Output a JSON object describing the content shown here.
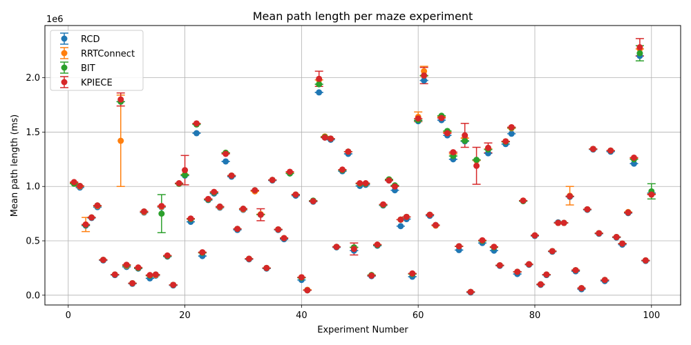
{
  "chart_data": {
    "type": "scatter",
    "title": "Mean path length per maze experiment",
    "xlabel": "Experiment Number",
    "ylabel": "Mean path length (ms)",
    "y_offset_label": "1e6",
    "xlim": [
      -4,
      105
    ],
    "ylim": [
      -90000,
      2480000
    ],
    "xticks": [
      0,
      20,
      40,
      60,
      80,
      100
    ],
    "xtick_labels": [
      "0",
      "20",
      "40",
      "60",
      "80",
      "100"
    ],
    "yticks": [
      0,
      500000,
      1000000,
      1500000,
      2000000
    ],
    "ytick_labels": [
      "0.0",
      "0.5",
      "1.0",
      "1.5",
      "2.0"
    ],
    "grid": true,
    "legend_position": "top-left",
    "colors": {
      "RCD": "#1f77b4",
      "RRTConnect": "#ff7f0e",
      "BIT": "#2ca02c",
      "KPIECE": "#d62728"
    },
    "series": [
      {
        "name": "RCD",
        "x": [
          1,
          2,
          3,
          4,
          5,
          6,
          8,
          9,
          10,
          11,
          12,
          13,
          14,
          15,
          16,
          17,
          18,
          19,
          20,
          21,
          22,
          23,
          24,
          25,
          26,
          27,
          28,
          29,
          30,
          31,
          32,
          33,
          34,
          35,
          36,
          37,
          38,
          39,
          40,
          41,
          42,
          43,
          44,
          45,
          46,
          47,
          48,
          49,
          50,
          51,
          52,
          53,
          54,
          55,
          56,
          57,
          58,
          59,
          60,
          61,
          62,
          63,
          64,
          65,
          66,
          67,
          68,
          69,
          70,
          71,
          72,
          73,
          74,
          75,
          76,
          77,
          78,
          79,
          80,
          81,
          82,
          83,
          84,
          85,
          86,
          87,
          88,
          89,
          90,
          91,
          92,
          93,
          94,
          95,
          96,
          97,
          98,
          99,
          100
        ],
        "y": [
          1030000,
          990000,
          640000,
          710000,
          810000,
          320000,
          185000,
          1780000,
          260000,
          105000,
          245000,
          760000,
          155000,
          180000,
          810000,
          355000,
          90000,
          1025000,
          1100000,
          675000,
          1490000,
          360000,
          875000,
          935000,
          805000,
          1230000,
          1090000,
          600000,
          785000,
          330000,
          960000,
          740000,
          245000,
          1055000,
          600000,
          515000,
          1120000,
          915000,
          140000,
          45000,
          860000,
          1865000,
          1450000,
          1430000,
          440000,
          1140000,
          1300000,
          410000,
          1005000,
          1015000,
          175000,
          455000,
          825000,
          1055000,
          965000,
          635000,
          700000,
          170000,
          1600000,
          1975000,
          730000,
          640000,
          1610000,
          1470000,
          1250000,
          415000,
          1415000,
          25000,
          1240000,
          480000,
          1305000,
          410000,
          270000,
          1390000,
          1485000,
          195000,
          865000,
          280000,
          545000,
          95000,
          185000,
          400000,
          670000,
          665000,
          905000,
          220000,
          55000,
          785000,
          1340000,
          565000,
          130000,
          1320000,
          530000,
          465000,
          755000,
          1210000,
          2200000,
          315000,
          940000
        ],
        "err": [
          0,
          0,
          0,
          0,
          0,
          0,
          0,
          0,
          0,
          0,
          0,
          0,
          0,
          0,
          0,
          0,
          0,
          0,
          0,
          0,
          0,
          0,
          0,
          0,
          0,
          0,
          0,
          0,
          0,
          0,
          0,
          0,
          0,
          0,
          0,
          0,
          0,
          0,
          0,
          0,
          0,
          0,
          0,
          0,
          0,
          0,
          0,
          0,
          0,
          0,
          0,
          0,
          0,
          0,
          0,
          0,
          0,
          0,
          0,
          0,
          0,
          0,
          0,
          0,
          0,
          0,
          0,
          0,
          0,
          0,
          0,
          0,
          0,
          0,
          0,
          0,
          0,
          0,
          0,
          0,
          0,
          0,
          0,
          0,
          0,
          0,
          0,
          0,
          0,
          0,
          0,
          0,
          0,
          0,
          0,
          0,
          0,
          0,
          0
        ]
      },
      {
        "name": "RRTConnect",
        "x": [
          1,
          2,
          3,
          4,
          5,
          6,
          8,
          9,
          10,
          11,
          12,
          13,
          14,
          15,
          16,
          17,
          18,
          19,
          20,
          21,
          22,
          23,
          24,
          25,
          26,
          27,
          28,
          29,
          30,
          31,
          32,
          33,
          34,
          35,
          36,
          37,
          38,
          39,
          40,
          41,
          42,
          43,
          44,
          45,
          46,
          47,
          48,
          49,
          50,
          51,
          52,
          53,
          54,
          55,
          56,
          57,
          58,
          59,
          60,
          61,
          62,
          63,
          64,
          65,
          66,
          67,
          68,
          69,
          70,
          71,
          72,
          73,
          74,
          75,
          76,
          77,
          78,
          79,
          80,
          81,
          82,
          83,
          84,
          85,
          86,
          87,
          88,
          89,
          90,
          91,
          92,
          93,
          94,
          95,
          96,
          97,
          98,
          99,
          100
        ],
        "y": [
          1030000,
          1000000,
          650000,
          715000,
          820000,
          325000,
          190000,
          1420000,
          270000,
          110000,
          250000,
          765000,
          180000,
          185000,
          815000,
          360000,
          95000,
          1025000,
          1110000,
          700000,
          1575000,
          390000,
          880000,
          945000,
          810000,
          1310000,
          1100000,
          610000,
          790000,
          335000,
          955000,
          745000,
          250000,
          1060000,
          605000,
          525000,
          1125000,
          925000,
          165000,
          50000,
          865000,
          1980000,
          1460000,
          1440000,
          445000,
          1150000,
          1320000,
          440000,
          1025000,
          1025000,
          185000,
          465000,
          830000,
          1065000,
          1005000,
          695000,
          720000,
          195000,
          1640000,
          2060000,
          740000,
          640000,
          1640000,
          1500000,
          1300000,
          450000,
          1445000,
          30000,
          1240000,
          500000,
          1345000,
          445000,
          275000,
          1415000,
          1535000,
          215000,
          870000,
          285000,
          550000,
          100000,
          190000,
          405000,
          665000,
          665000,
          915000,
          230000,
          65000,
          790000,
          1345000,
          570000,
          140000,
          1330000,
          535000,
          475000,
          765000,
          1260000,
          2265000,
          320000,
          930000
        ],
        "err": [
          0,
          0,
          65000,
          0,
          0,
          0,
          0,
          420000,
          0,
          0,
          0,
          0,
          0,
          0,
          0,
          0,
          0,
          0,
          0,
          0,
          0,
          0,
          0,
          0,
          0,
          0,
          0,
          0,
          0,
          0,
          0,
          0,
          0,
          0,
          0,
          0,
          0,
          0,
          0,
          0,
          0,
          0,
          0,
          0,
          0,
          0,
          0,
          0,
          0,
          0,
          0,
          0,
          0,
          0,
          0,
          0,
          0,
          0,
          45000,
          45000,
          0,
          0,
          0,
          0,
          0,
          0,
          0,
          0,
          0,
          0,
          0,
          0,
          0,
          0,
          0,
          0,
          0,
          0,
          0,
          0,
          0,
          0,
          0,
          0,
          85000,
          0,
          0,
          0,
          0,
          0,
          0,
          0,
          0,
          0,
          0,
          0,
          0,
          0,
          0
        ]
      },
      {
        "name": "BIT",
        "x": [
          1,
          2,
          3,
          4,
          5,
          6,
          8,
          9,
          10,
          11,
          12,
          13,
          14,
          15,
          16,
          17,
          18,
          19,
          20,
          21,
          22,
          23,
          24,
          25,
          26,
          27,
          28,
          29,
          30,
          31,
          32,
          33,
          34,
          35,
          36,
          37,
          38,
          39,
          40,
          41,
          42,
          43,
          44,
          45,
          46,
          47,
          48,
          49,
          50,
          51,
          52,
          53,
          54,
          55,
          56,
          57,
          58,
          59,
          60,
          61,
          62,
          63,
          64,
          65,
          66,
          67,
          68,
          69,
          70,
          71,
          72,
          73,
          74,
          75,
          76,
          77,
          78,
          79,
          80,
          81,
          82,
          83,
          84,
          85,
          86,
          87,
          88,
          89,
          90,
          91,
          92,
          93,
          94,
          95,
          96,
          97,
          98,
          99,
          100
        ],
        "y": [
          1025000,
          1005000,
          645000,
          715000,
          825000,
          325000,
          190000,
          1780000,
          275000,
          110000,
          250000,
          770000,
          180000,
          190000,
          750000,
          360000,
          95000,
          1025000,
          1105000,
          700000,
          1570000,
          390000,
          880000,
          945000,
          815000,
          1310000,
          1100000,
          610000,
          795000,
          335000,
          965000,
          740000,
          250000,
          1060000,
          605000,
          525000,
          1120000,
          925000,
          160000,
          45000,
          870000,
          1940000,
          1455000,
          1440000,
          445000,
          1150000,
          1320000,
          440000,
          1025000,
          1025000,
          185000,
          460000,
          830000,
          1065000,
          1010000,
          695000,
          720000,
          195000,
          1610000,
          2020000,
          740000,
          645000,
          1650000,
          1510000,
          1280000,
          450000,
          1420000,
          30000,
          1245000,
          500000,
          1340000,
          440000,
          275000,
          1410000,
          1540000,
          215000,
          865000,
          285000,
          550000,
          100000,
          190000,
          405000,
          665000,
          665000,
          910000,
          230000,
          65000,
          790000,
          1345000,
          570000,
          140000,
          1330000,
          535000,
          475000,
          760000,
          1250000,
          2225000,
          320000,
          955000
        ],
        "err": [
          0,
          0,
          0,
          0,
          0,
          0,
          0,
          0,
          0,
          0,
          0,
          0,
          0,
          0,
          175000,
          0,
          0,
          0,
          0,
          0,
          0,
          0,
          0,
          0,
          0,
          0,
          0,
          0,
          0,
          0,
          0,
          0,
          0,
          0,
          0,
          0,
          0,
          0,
          0,
          0,
          0,
          0,
          0,
          0,
          0,
          0,
          0,
          0,
          0,
          0,
          0,
          0,
          0,
          0,
          0,
          0,
          0,
          0,
          0,
          0,
          0,
          0,
          0,
          0,
          0,
          0,
          0,
          0,
          0,
          0,
          0,
          0,
          0,
          0,
          0,
          0,
          0,
          0,
          0,
          0,
          0,
          0,
          0,
          0,
          0,
          0,
          0,
          0,
          0,
          0,
          0,
          0,
          0,
          0,
          0,
          0,
          70000,
          0,
          70000
        ]
      },
      {
        "name": "KPIECE",
        "x": [
          1,
          2,
          3,
          4,
          5,
          6,
          8,
          9,
          10,
          11,
          12,
          13,
          14,
          15,
          16,
          17,
          18,
          19,
          20,
          21,
          22,
          23,
          24,
          25,
          26,
          27,
          28,
          29,
          30,
          31,
          32,
          33,
          34,
          35,
          36,
          37,
          38,
          39,
          40,
          41,
          42,
          43,
          44,
          45,
          46,
          47,
          48,
          49,
          50,
          51,
          52,
          53,
          54,
          55,
          56,
          57,
          58,
          59,
          60,
          61,
          62,
          63,
          64,
          65,
          66,
          67,
          68,
          69,
          70,
          71,
          72,
          73,
          74,
          75,
          76,
          77,
          78,
          79,
          80,
          81,
          82,
          83,
          84,
          85,
          86,
          87,
          88,
          89,
          90,
          91,
          92,
          93,
          94,
          95,
          96,
          97,
          98,
          99,
          100
        ],
        "y": [
          1040000,
          1005000,
          650000,
          715000,
          825000,
          325000,
          190000,
          1800000,
          280000,
          110000,
          255000,
          770000,
          185000,
          190000,
          820000,
          365000,
          95000,
          1030000,
          1150000,
          705000,
          1580000,
          395000,
          885000,
          950000,
          815000,
          1300000,
          1100000,
          610000,
          795000,
          335000,
          965000,
          740000,
          250000,
          1060000,
          605000,
          525000,
          1135000,
          925000,
          165000,
          45000,
          865000,
          1990000,
          1450000,
          1440000,
          445000,
          1155000,
          1320000,
          425000,
          1030000,
          1030000,
          180000,
          465000,
          835000,
          1055000,
          1000000,
          695000,
          720000,
          200000,
          1625000,
          2020000,
          740000,
          645000,
          1630000,
          1490000,
          1315000,
          450000,
          1470000,
          30000,
          1190000,
          505000,
          1355000,
          445000,
          275000,
          1415000,
          1545000,
          215000,
          870000,
          285000,
          550000,
          100000,
          190000,
          405000,
          665000,
          665000,
          910000,
          230000,
          65000,
          790000,
          1345000,
          570000,
          140000,
          1330000,
          535000,
          475000,
          760000,
          1265000,
          2280000,
          320000,
          925000
        ],
        "err": [
          0,
          0,
          0,
          0,
          0,
          0,
          0,
          60000,
          0,
          0,
          0,
          0,
          0,
          0,
          0,
          0,
          0,
          0,
          135000,
          0,
          0,
          0,
          0,
          0,
          0,
          0,
          0,
          0,
          0,
          0,
          0,
          55000,
          0,
          0,
          0,
          0,
          0,
          0,
          0,
          0,
          0,
          70000,
          0,
          0,
          0,
          0,
          0,
          55000,
          0,
          0,
          0,
          0,
          0,
          0,
          0,
          0,
          0,
          0,
          0,
          75000,
          0,
          0,
          0,
          0,
          0,
          0,
          110000,
          0,
          170000,
          0,
          45000,
          0,
          0,
          0,
          0,
          0,
          0,
          0,
          0,
          0,
          0,
          0,
          0,
          0,
          0,
          0,
          0,
          0,
          0,
          0,
          0,
          0,
          0,
          0,
          0,
          0,
          80000,
          0,
          0
        ]
      }
    ]
  }
}
